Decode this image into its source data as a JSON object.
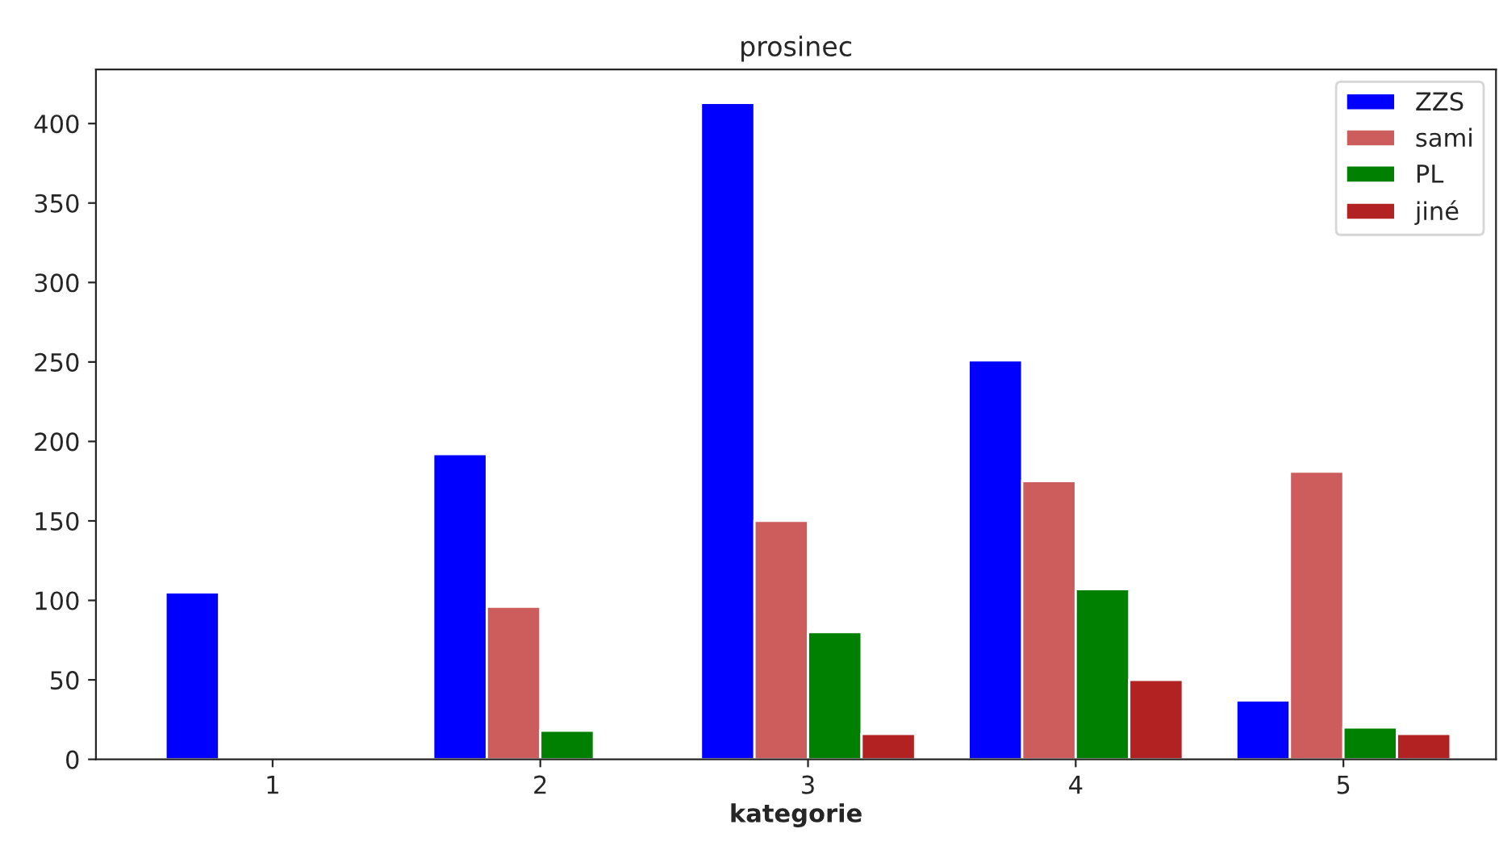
{
  "chart_data": {
    "type": "bar",
    "title": "prosinec",
    "xlabel": "kategorie",
    "categories": [
      "1",
      "2",
      "3",
      "4",
      "5"
    ],
    "series": [
      {
        "name": "ZZS",
        "color": "#0000ff",
        "values": [
          105,
          192,
          413,
          251,
          37
        ]
      },
      {
        "name": "sami",
        "color": "#cd5c5c",
        "values": [
          0,
          96,
          150,
          175,
          181
        ]
      },
      {
        "name": "PL",
        "color": "#008000",
        "values": [
          0,
          18,
          80,
          107,
          20
        ]
      },
      {
        "name": "jiné",
        "color": "#b22222",
        "values": [
          0,
          0,
          16,
          50,
          16
        ]
      }
    ],
    "ylim": [
      0,
      434
    ],
    "yticks": [
      0,
      50,
      100,
      150,
      200,
      250,
      300,
      350,
      400
    ],
    "grid": false,
    "legend": "top right"
  }
}
